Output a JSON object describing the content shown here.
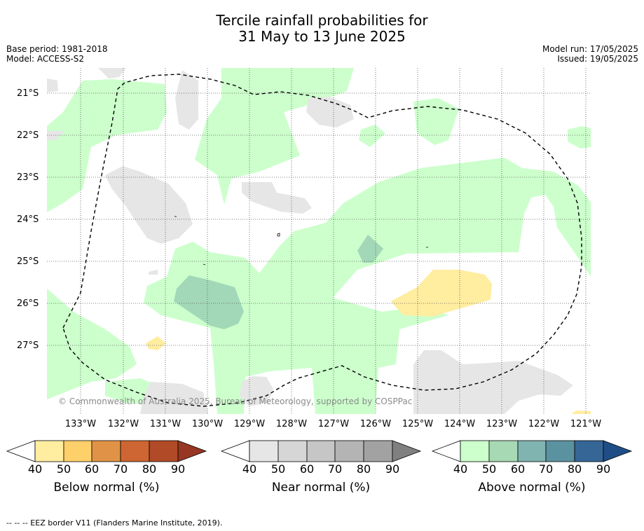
{
  "header": {
    "title_line1": "Tercile rainfall probabilities for",
    "title_line2": "31 May to 13 June 2025",
    "base_period": "Base period: 1981-2018",
    "model": "Model: ACCESS-S2",
    "model_run": "Model run: 17/05/2025",
    "issued": "Issued: 19/05/2025"
  },
  "map": {
    "lat_labels": [
      "21°S",
      "22°S",
      "23°S",
      "24°S",
      "25°S",
      "26°S",
      "27°S"
    ],
    "lon_labels": [
      "133°W",
      "132°W",
      "131°W",
      "130°W",
      "129°W",
      "128°W",
      "127°W",
      "126°W",
      "125°W",
      "124°W",
      "123°W",
      "122°W",
      "121°W"
    ],
    "copyright": "© Commonwealth of Australia 2025, Bureau of Meteorology, supported by COSPPac",
    "colors": {
      "above_40": "#ccffcc",
      "above_50": "#a2d8b7",
      "near_40": "#e6e6e6",
      "below_40": "#ffeda0",
      "eez_line": "#000000"
    }
  },
  "colorbars": [
    {
      "title": "Below normal (%)",
      "ticks": [
        "40",
        "50",
        "60",
        "70",
        "80",
        "90"
      ],
      "colors": [
        "#ffeda0",
        "#fed06a",
        "#e09346",
        "#cd6632",
        "#b14a27",
        "#963623"
      ]
    },
    {
      "title": "Near normal (%)",
      "ticks": [
        "40",
        "50",
        "60",
        "70",
        "80",
        "90"
      ],
      "colors": [
        "#e6e6e6",
        "#d6d6d6",
        "#c6c6c6",
        "#b4b4b4",
        "#a2a2a2",
        "#808080"
      ]
    },
    {
      "title": "Above normal (%)",
      "ticks": [
        "40",
        "50",
        "60",
        "70",
        "80",
        "90"
      ],
      "colors": [
        "#ccffcc",
        "#a6d9b4",
        "#80b4b0",
        "#5a92a0",
        "#356696",
        "#1f4e86"
      ]
    }
  ],
  "footer": {
    "legend_text": "--  --  -- EEZ border V11 (Flanders Marine Institute, 2019)."
  }
}
